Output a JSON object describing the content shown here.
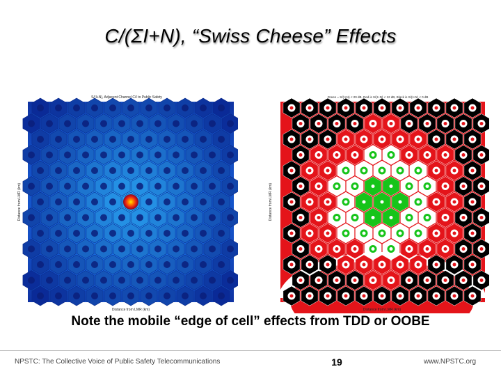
{
  "slide": {
    "title": "C/(ΣI+N), “Swiss Cheese” Effects",
    "caption": "Note the mobile “edge of cell” effects from TDD or OOBE",
    "footer_left": "NPSTC: The Collective Voice of Public Safety Telecommunications",
    "page_number": "19",
    "footer_right": "www.NPSTC.org"
  },
  "left_plot": {
    "title": "S/(I+N), Adjacent Channel C/I to Public Safety",
    "xlabel": "Distance from LMR (km)",
    "ylabel": "Distance from LMR (km)"
  },
  "right_plot": {
    "title": "Green = S/(I+N) < 20 dB, Red is S/(I+N) < 12 dB, Black is S/(I+N) < 0 dB",
    "xlabel": "Distance from LMR (km)",
    "ylabel": "Distance from LMR (km)"
  },
  "colors": {
    "left_background": "#1e63d8",
    "left_center": "#e0201a",
    "right_red": "#e4141a",
    "right_green": "#16c41a",
    "right_black": "#000000",
    "right_white": "#ffffff"
  }
}
